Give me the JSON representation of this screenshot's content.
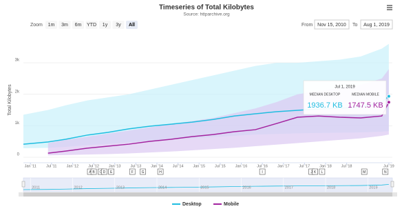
{
  "chart_data": {
    "type": "line",
    "title": "Timeseries of Total Kilobytes",
    "subtitle": "Source: httparchive.org",
    "y_label": "Total Kilobytes",
    "range_selector": {
      "zoom_label": "Zoom",
      "buttons": [
        "1m",
        "3m",
        "6m",
        "YTD",
        "1y",
        "3y",
        "All"
      ],
      "selected": "All",
      "from_label": "From",
      "from": "Nov 15, 2010",
      "to_label": "To",
      "to": "Aug 1, 2019"
    },
    "x": [
      "2010-11",
      "2011-06",
      "2011-11",
      "2012-05",
      "2012-11",
      "2013-05",
      "2013-11",
      "2014-05",
      "2014-11",
      "2015-05",
      "2015-11",
      "2016-05",
      "2016-11",
      "2017-05",
      "2017-11",
      "2018-05",
      "2018-11",
      "2019-05",
      "2019-07"
    ],
    "series": [
      {
        "name": "Desktop",
        "color": "#1fbde0",
        "band_color": "#c9f1fb",
        "values": [
          415,
          485,
          570,
          700,
          790,
          900,
          985,
          1050,
          1115,
          1200,
          1310,
          1380,
          1445,
          1490,
          1530,
          1555,
          1600,
          1750,
          1936.7
        ],
        "value_labels": [
          null,
          null,
          null,
          null,
          null,
          null,
          null,
          null,
          null,
          null,
          null,
          null,
          null,
          null,
          null,
          null,
          null,
          null,
          "1936.7 KB"
        ],
        "band_low": [
          285,
          300,
          330,
          380,
          420,
          470,
          520,
          560,
          600,
          640,
          680,
          720,
          740,
          760,
          770,
          780,
          790,
          810,
          830
        ],
        "band_high": [
          1350,
          1500,
          1650,
          1800,
          1900,
          2000,
          2150,
          2300,
          2450,
          2600,
          2750,
          2900,
          3000,
          3000,
          3050,
          3100,
          3200,
          3450,
          3600
        ]
      },
      {
        "name": "Mobile",
        "color": "#a3239f",
        "band_color": "#dcc9f2",
        "values": [
          null,
          130,
          195,
          285,
          350,
          415,
          505,
          570,
          655,
          720,
          810,
          875,
          1070,
          1270,
          1310,
          1270,
          1250,
          1310,
          1747.5
        ],
        "value_labels": [
          null,
          null,
          null,
          null,
          null,
          null,
          null,
          null,
          null,
          null,
          null,
          null,
          null,
          null,
          null,
          null,
          null,
          null,
          "1747.5 KB"
        ],
        "band_low": [
          null,
          60,
          70,
          85,
          100,
          120,
          150,
          180,
          220,
          260,
          300,
          350,
          400,
          450,
          500,
          550,
          600,
          680,
          720
        ],
        "band_high": [
          null,
          450,
          550,
          650,
          750,
          850,
          950,
          1050,
          1150,
          1250,
          1400,
          1550,
          1750,
          2000,
          2100,
          2200,
          2300,
          2500,
          2800
        ]
      }
    ],
    "tooltip": {
      "date": "Jul 1, 2019",
      "labels": [
        "MEDIAN DESKTOP",
        "MEDIAN MOBILE"
      ],
      "index": 18
    },
    "xlim": [
      "2010-11",
      "2019-08"
    ],
    "xticks": [
      {
        "value": "2011-01",
        "label": "Jan '11"
      },
      {
        "value": "2011-07",
        "label": "Jul '11"
      },
      {
        "value": "2012-01",
        "label": "Jan '12"
      },
      {
        "value": "2012-07",
        "label": "Jul '12"
      },
      {
        "value": "2013-01",
        "label": "Jan '13"
      },
      {
        "value": "2013-07",
        "label": "Jul '13"
      },
      {
        "value": "2014-01",
        "label": "Jan '14"
      },
      {
        "value": "2014-07",
        "label": "Jul '14"
      },
      {
        "value": "2015-01",
        "label": "Jan '15"
      },
      {
        "value": "2015-07",
        "label": "Jul '15"
      },
      {
        "value": "2016-01",
        "label": "Jan '16"
      },
      {
        "value": "2016-07",
        "label": "Jul '16"
      },
      {
        "value": "2017-01",
        "label": "Jan '17"
      },
      {
        "value": "2017-07",
        "label": "Jul '17"
      },
      {
        "value": "2018-01",
        "label": "Jan '18"
      },
      {
        "value": "2018-07",
        "label": "Jul '18"
      },
      {
        "value": "2019-07",
        "label": "Jul '19"
      }
    ],
    "ylim": [
      -175,
      3790
    ],
    "yticks": [
      0,
      {
        "value": 1000,
        "label": "1k"
      },
      {
        "value": 2000,
        "label": "2k"
      },
      {
        "value": 3000,
        "label": "3k"
      }
    ],
    "grid": true,
    "flags": [
      {
        "label": "A",
        "x": "2012-06"
      },
      {
        "label": "B",
        "x": "2012-07"
      },
      {
        "label": "C",
        "x": "2012-09"
      },
      {
        "label": "D",
        "x": "2012-10"
      },
      {
        "label": "E",
        "x": "2012-12"
      },
      {
        "label": "F",
        "x": "2013-06"
      },
      {
        "label": "G",
        "x": "2013-09"
      },
      {
        "label": "H",
        "x": "2014-02"
      },
      {
        "label": "I",
        "x": "2016-07"
      },
      {
        "label": "J",
        "x": "2017-09"
      },
      {
        "label": "K",
        "x": "2017-10"
      },
      {
        "label": "L",
        "x": "2017-12"
      },
      {
        "label": "M",
        "x": "2018-12"
      },
      {
        "label": "N",
        "x": "2019-06"
      }
    ],
    "navigator_ticks": [
      {
        "value": "2011-01",
        "label": "2011"
      },
      {
        "value": "2012-01",
        "label": "2012"
      },
      {
        "value": "2013-01",
        "label": "2013"
      },
      {
        "value": "2014-01",
        "label": "2014"
      },
      {
        "value": "2015-01",
        "label": "2015"
      },
      {
        "value": "2016-01",
        "label": "2016"
      },
      {
        "value": "2017-01",
        "label": "2017"
      },
      {
        "value": "2018-01",
        "label": "2018"
      },
      {
        "value": "2019-01",
        "label": "2019"
      }
    ],
    "legend": "bottom"
  }
}
